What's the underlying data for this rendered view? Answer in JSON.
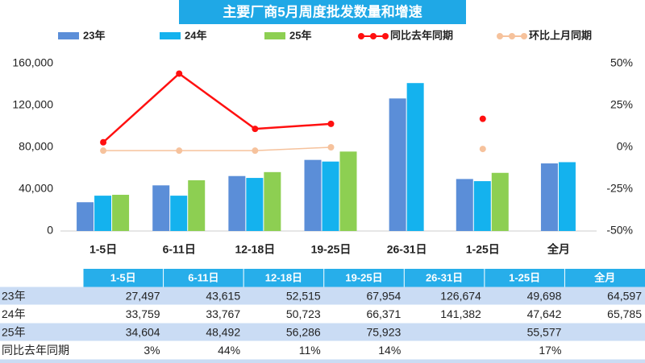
{
  "chart_data": {
    "type": "bar",
    "title": "主要厂商5月周度批发数量和增速",
    "categories": [
      "1-5日",
      "6-11日",
      "12-18日",
      "19-25日",
      "26-31日",
      "1-25日",
      "全月"
    ],
    "series": [
      {
        "name": "23年",
        "color": "#5b8ed8",
        "values": [
          27497,
          43615,
          52515,
          67954,
          126674,
          49698,
          64597
        ],
        "value_labels": [
          "27,497",
          "43,615",
          "52,515",
          "67,954",
          "126,674",
          "49,698",
          "64,597"
        ]
      },
      {
        "name": "24年",
        "color": "#14b2ee",
        "values": [
          33759,
          33767,
          50723,
          66371,
          141382,
          47642,
          65785
        ],
        "value_labels": [
          "33,759",
          "33,767",
          "50,723",
          "66,371",
          "141,382",
          "47,642",
          "65,785"
        ]
      },
      {
        "name": "25年",
        "color": "#8dcf52",
        "values": [
          34604,
          48492,
          56286,
          75923,
          null,
          55577,
          null
        ],
        "value_labels": [
          "34,604",
          "48,492",
          "56,286",
          "75,923",
          null,
          "55,577",
          null
        ]
      },
      {
        "name": "同比去年同期",
        "type": "line",
        "axis": "y2",
        "color": "#ff1010",
        "values": [
          3,
          44,
          11,
          14,
          null,
          17,
          null
        ],
        "value_labels": [
          "3%",
          "44%",
          "11%",
          "14%",
          null,
          "17%",
          null
        ]
      },
      {
        "name": "环比上月同期",
        "type": "line",
        "axis": "y2",
        "color": "#f6c29c",
        "values": [
          -2,
          -2,
          -2,
          0,
          null,
          -1,
          null
        ]
      }
    ],
    "ylim": [
      0,
      160000
    ],
    "yticks": [
      0,
      {
        "value": 40000,
        "label": "40,000"
      },
      {
        "value": 80000,
        "label": "80,000"
      },
      {
        "value": 120000,
        "label": "120,000"
      },
      {
        "value": 160000,
        "label": "160,000"
      }
    ],
    "y2lim": [
      -50,
      50
    ],
    "y2ticks": [
      {
        "value": -50,
        "label": "-50%"
      },
      {
        "value": -25,
        "label": "-25%"
      },
      {
        "value": 0,
        "label": "0%"
      },
      {
        "value": 25,
        "label": "25%"
      },
      {
        "value": 50,
        "label": "50%"
      }
    ],
    "legend": "top"
  }
}
